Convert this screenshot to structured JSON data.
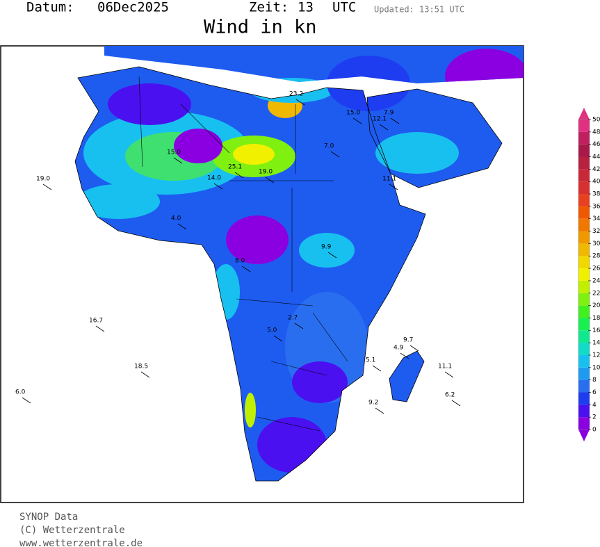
{
  "header": {
    "date_label": "Datum:",
    "date": "06Dec2025",
    "time_label": "Zeit:",
    "hour": "13",
    "zone": "UTC",
    "updated": "Updated: 13:51 UTC",
    "title": "Wind in kn"
  },
  "colorbar": {
    "ticks": [
      0,
      2,
      4,
      6,
      8,
      10,
      12,
      14,
      16,
      18,
      20,
      22,
      24,
      26,
      28,
      30,
      32,
      34,
      36,
      38,
      40,
      42,
      44,
      46,
      48,
      50
    ],
    "colors": [
      "#8a00e0",
      "#4a10f0",
      "#1e3cf0",
      "#2a6ef0",
      "#1e9af0",
      "#18c0f0",
      "#10dcc8",
      "#10e890",
      "#18f050",
      "#40f020",
      "#80f010",
      "#c0f000",
      "#f0f000",
      "#f0d800",
      "#f0b800",
      "#f09800",
      "#f07800",
      "#f05800",
      "#e84020",
      "#d83030",
      "#c82838",
      "#b82040",
      "#a81848",
      "#c02060",
      "#e03080"
    ]
  },
  "stations": [
    "23.2",
    "25.1",
    "19.0",
    "15.0",
    "14.0",
    "19.0",
    "16.7",
    "18.5",
    "6.0",
    "11.1",
    "9.9",
    "12.1",
    "7.0",
    "4.0",
    "2.7",
    "5.0",
    "8.0",
    "15.0",
    "7.9",
    "9.2",
    "6.2",
    "11.1",
    "4.9",
    "9.7",
    "5.1"
  ],
  "footer": {
    "line1": "SYNOP Data",
    "line2": "(C) Wetterzentrale",
    "line3": "www.wetterzentrale.de"
  }
}
